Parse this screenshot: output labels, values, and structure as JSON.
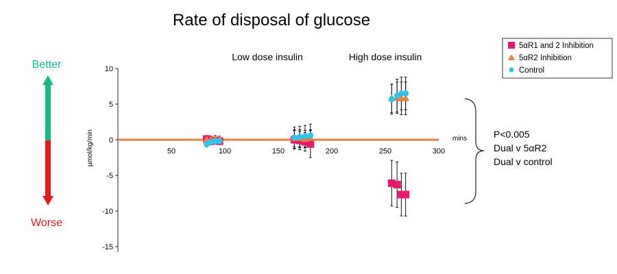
{
  "chart_data": {
    "type": "scatter",
    "title": "Rate of disposal of glucose",
    "xlabel": "mins",
    "ylabel": "µmol/kg/min",
    "xlim": [
      0,
      300
    ],
    "ylim": [
      -15,
      10
    ],
    "x_ticks": [
      "50",
      "100",
      "150",
      "200",
      "250",
      "300"
    ],
    "y_ticks": [
      "10",
      "5",
      "0",
      "-5",
      "-10",
      "-15"
    ],
    "grid": false,
    "legend_position": "top-right",
    "annotations": {
      "low_dose": "Low dose insulin",
      "high_dose": "High dose insulin",
      "stats": [
        "P<0.005",
        "Dual v 5αR2",
        "Dual v control"
      ],
      "better": "Better",
      "worse": "Worse"
    },
    "series": [
      {
        "name": "5αR1 and 2 Inhibition",
        "marker": "square",
        "color": "#e8196f",
        "points": [
          {
            "x": 83,
            "y": 0.1,
            "err": 0.5
          },
          {
            "x": 87,
            "y": -0.2,
            "err": 0.5
          },
          {
            "x": 91,
            "y": -0.1,
            "err": 0.5
          },
          {
            "x": 95,
            "y": -0.2,
            "err": 0.5
          },
          {
            "x": 165,
            "y": 0.0,
            "err": 1.3
          },
          {
            "x": 170,
            "y": -0.1,
            "err": 1.3
          },
          {
            "x": 175,
            "y": -0.3,
            "err": 1.3
          },
          {
            "x": 180,
            "y": -0.6,
            "err": 1.9
          },
          {
            "x": 256,
            "y": -6.1,
            "err": 3.2
          },
          {
            "x": 261,
            "y": -6.3,
            "err": 3.2
          },
          {
            "x": 265,
            "y": -7.7,
            "err": 3.0
          },
          {
            "x": 269,
            "y": -7.7,
            "err": 3.0
          }
        ]
      },
      {
        "name": "5αR2 Inhibition",
        "marker": "triangle",
        "color": "#e8823a",
        "points": [
          {
            "x": 83,
            "y": 0.0,
            "err": 0.5
          },
          {
            "x": 87,
            "y": 0.0,
            "err": 0.5
          },
          {
            "x": 91,
            "y": 0.1,
            "err": 0.5
          },
          {
            "x": 95,
            "y": 0.0,
            "err": 0.5
          },
          {
            "x": 165,
            "y": 0.2,
            "err": 1.2
          },
          {
            "x": 170,
            "y": 0.2,
            "err": 1.2
          },
          {
            "x": 175,
            "y": 0.1,
            "err": 1.2
          },
          {
            "x": 180,
            "y": 0.2,
            "err": 1.2
          },
          {
            "x": 256,
            "y": 5.8,
            "err": 2.0
          },
          {
            "x": 261,
            "y": 5.9,
            "err": 2.2
          },
          {
            "x": 265,
            "y": 5.8,
            "err": 2.3
          },
          {
            "x": 269,
            "y": 5.8,
            "err": 2.3
          }
        ]
      },
      {
        "name": "Control",
        "marker": "circle",
        "color": "#2fc5ea",
        "points": [
          {
            "x": 83,
            "y": -0.6,
            "err": 0.4
          },
          {
            "x": 87,
            "y": -0.3,
            "err": 0.4
          },
          {
            "x": 91,
            "y": -0.2,
            "err": 0.4
          },
          {
            "x": 95,
            "y": -0.2,
            "err": 0.4
          },
          {
            "x": 165,
            "y": 0.3,
            "err": 1.5
          },
          {
            "x": 170,
            "y": 0.4,
            "err": 1.5
          },
          {
            "x": 175,
            "y": 0.5,
            "err": 1.5
          },
          {
            "x": 180,
            "y": 0.6,
            "err": 1.6
          },
          {
            "x": 256,
            "y": 5.7,
            "err": 2.1
          },
          {
            "x": 261,
            "y": 6.2,
            "err": 2.3
          },
          {
            "x": 265,
            "y": 6.5,
            "err": 2.3
          },
          {
            "x": 269,
            "y": 6.5,
            "err": 2.3
          }
        ]
      }
    ]
  }
}
